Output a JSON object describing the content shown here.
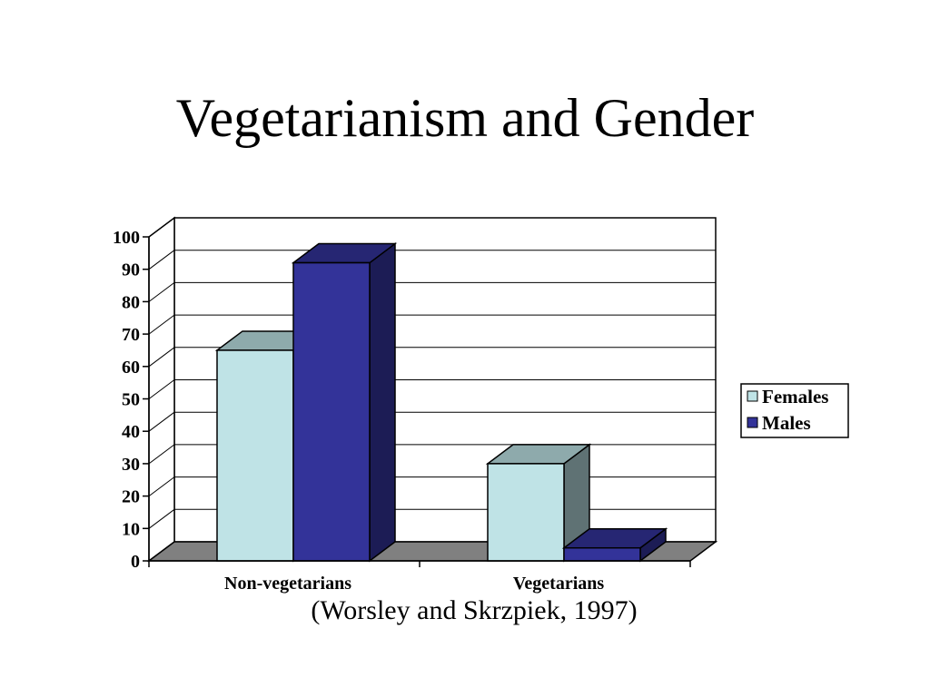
{
  "slide": {
    "title": "Vegetarianism and Gender",
    "caption": "(Worsley and Skrzpiek, 1997)"
  },
  "chart_data": {
    "type": "bar",
    "bar_style": "3d-clustered",
    "categories": [
      "Non-vegetarians",
      "Vegetarians"
    ],
    "series": [
      {
        "name": "Females",
        "values": [
          65,
          30
        ],
        "color": "#bfe3e6",
        "side_color": "#5f7274",
        "top_color": "#8eaaac"
      },
      {
        "name": "Males",
        "values": [
          92,
          4
        ],
        "color": "#333399",
        "side_color": "#1c1c55",
        "top_color": "#262673"
      }
    ],
    "ylim": [
      0,
      100
    ],
    "yticks": [
      0,
      10,
      20,
      30,
      40,
      50,
      60,
      70,
      80,
      90,
      100
    ],
    "title": "",
    "xlabel": "",
    "ylabel": "",
    "grid": true,
    "floor_color": "#808080",
    "legend_position": "right"
  }
}
